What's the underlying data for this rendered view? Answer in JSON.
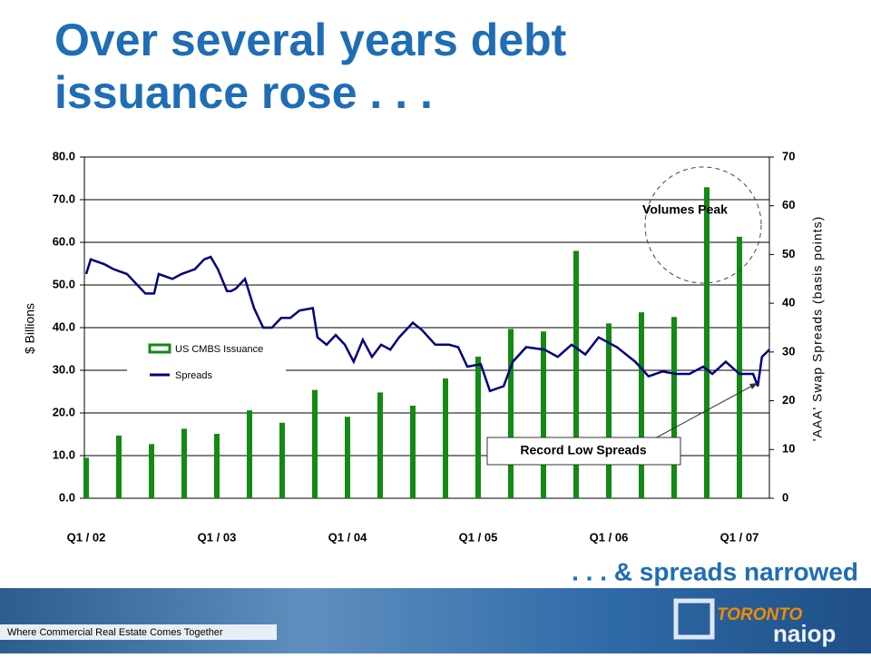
{
  "chart_data": {
    "type": "bar",
    "title": "Over several years debt issuance rose . . .",
    "subtitle": ". . . & spreads narrowed",
    "ylabel": "$ Billions",
    "y2label": "'AAA' Swap Spreads (basis points)",
    "categories": [
      "Q1 / 02",
      null,
      null,
      null,
      "Q1 / 03",
      null,
      null,
      null,
      "Q1 / 04",
      null,
      null,
      null,
      "Q1 / 05",
      null,
      null,
      null,
      "Q1 / 06",
      null,
      null,
      null,
      "Q1 / 07"
    ],
    "series": [
      {
        "name": "US CMBS Issuance",
        "color": "#138a13",
        "values": [
          9.5,
          14.7,
          12.7,
          16.3,
          15.1,
          20.6,
          17.7,
          25.4,
          19.1,
          24.8,
          21.7,
          28.1,
          33.2,
          39.7,
          39.1,
          58.0,
          41.0,
          43.6,
          42.5,
          72.9,
          61.3
        ]
      },
      {
        "name": "Spreads",
        "color": "#000080",
        "axis": "y2",
        "x": [
          0,
          0.14,
          0.56,
          0.83,
          1.25,
          1.53,
          1.81,
          2.08,
          2.22,
          2.64,
          2.92,
          3.33,
          3.61,
          3.81,
          4.03,
          4.31,
          4.44,
          4.58,
          4.86,
          5.14,
          5.42,
          5.69,
          5.97,
          6.25,
          6.53,
          6.94,
          7.08,
          7.36,
          7.64,
          7.92,
          8.19,
          8.47,
          8.75,
          9.03,
          9.31,
          9.58,
          10,
          10.28,
          10.69,
          11.11,
          11.39,
          11.67,
          12.08,
          12.36,
          12.78,
          13.06,
          13.47,
          14.03,
          14.44,
          14.86,
          15.28,
          15.69,
          16.25,
          16.81,
          17.22,
          17.64,
          18.06,
          18.47,
          18.89,
          19.17,
          19.58,
          20,
          20.42,
          20.56,
          20.69,
          20.92
        ],
        "values": [
          46,
          49,
          48,
          47,
          46,
          44,
          42,
          42,
          46,
          45,
          46,
          47,
          49,
          49.5,
          47,
          42.5,
          42.5,
          43,
          45,
          39,
          35,
          35,
          37,
          37,
          38.5,
          39,
          33,
          31.5,
          33.5,
          31.5,
          28,
          32.5,
          29,
          31.5,
          30.5,
          33,
          36,
          34.5,
          31.5,
          31.5,
          31,
          27,
          27.5,
          22,
          23,
          28,
          31,
          30.5,
          29,
          31.5,
          29.5,
          33,
          31,
          28,
          25,
          26,
          25.5,
          25.5,
          27,
          25.5,
          28,
          25.5,
          25.5,
          23,
          29,
          30.5
        ]
      }
    ],
    "ylim": [
      0,
      80
    ],
    "yticks": [
      {
        "value": 0,
        "label": "0.0"
      },
      {
        "value": 10,
        "label": "10.0"
      },
      {
        "value": 20,
        "label": "20.0"
      },
      {
        "value": 30,
        "label": "30.0"
      },
      {
        "value": 40,
        "label": "40.0"
      },
      {
        "value": 50,
        "label": "50.0"
      },
      {
        "value": 60,
        "label": "60.0"
      },
      {
        "value": 70,
        "label": "70.0"
      },
      {
        "value": 80,
        "label": "80.0"
      }
    ],
    "y2lim": [
      0,
      70
    ],
    "y2ticks": [
      0,
      10,
      20,
      30,
      40,
      50,
      60,
      70
    ],
    "grid": true,
    "annotations": [
      "Volumes Peak",
      "Record Low Spreads"
    ],
    "footer": "Where Commercial Real Estate Comes Together",
    "logo": [
      "TORONTO",
      "naiop"
    ]
  }
}
